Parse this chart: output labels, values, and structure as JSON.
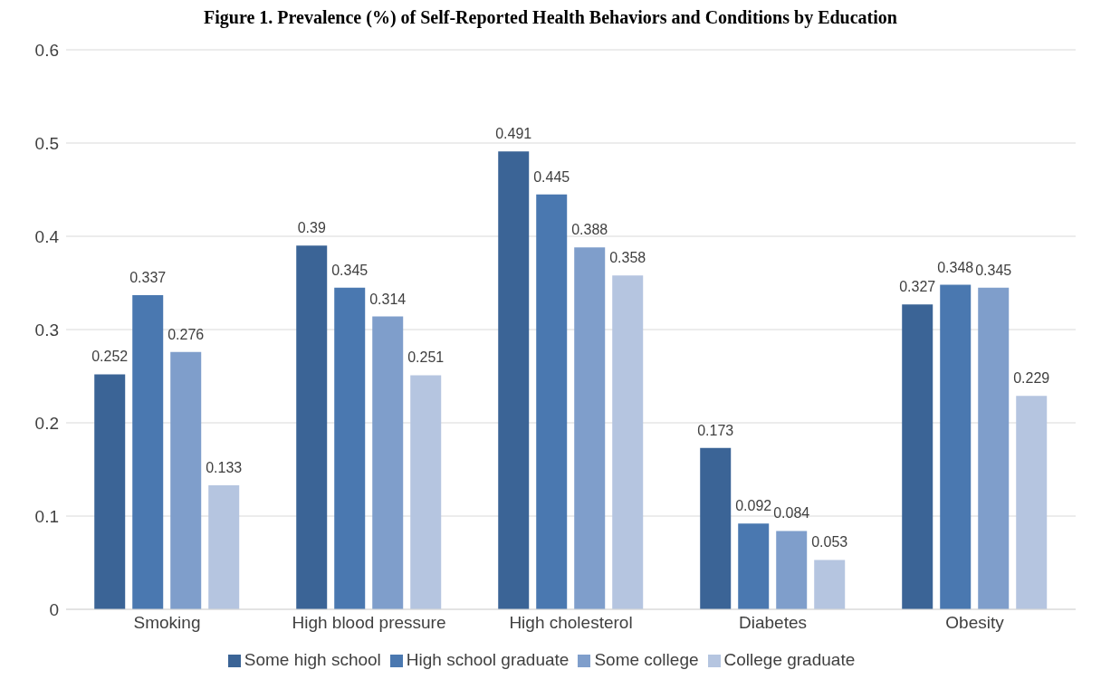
{
  "chart_data": {
    "type": "bar",
    "title": "Figure 1. Prevalence (%) of Self-Reported Health Behaviors and Conditions by Education",
    "categories": [
      "Smoking",
      "High blood pressure",
      "High cholesterol",
      "Diabetes",
      "Obesity"
    ],
    "series": [
      {
        "name": "Some high school",
        "color": "#3b6496",
        "values": [
          0.252,
          0.39,
          0.491,
          0.173,
          0.327
        ]
      },
      {
        "name": "High school graduate",
        "color": "#4a78b0",
        "values": [
          0.337,
          0.345,
          0.445,
          0.092,
          0.348
        ]
      },
      {
        "name": "Some college",
        "color": "#7f9ecb",
        "values": [
          0.276,
          0.314,
          0.388,
          0.084,
          0.345
        ]
      },
      {
        "name": "College graduate",
        "color": "#b5c5e0",
        "values": [
          0.133,
          0.251,
          0.358,
          0.053,
          0.229
        ]
      }
    ],
    "ylim": [
      0,
      0.6
    ],
    "yticks": [
      0,
      0.1,
      0.2,
      0.3,
      0.4,
      0.5,
      0.6
    ],
    "grid": "y",
    "legend": "bottom",
    "data_labels": true
  }
}
